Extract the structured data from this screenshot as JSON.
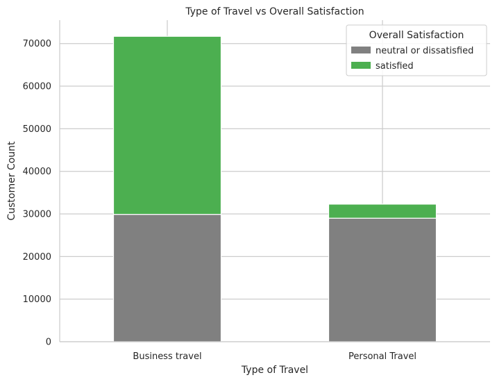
{
  "chart_data": {
    "type": "bar",
    "stacked": true,
    "title": "Type of Travel vs Overall Satisfaction",
    "xlabel": "Type of Travel",
    "ylabel": "Customer Count",
    "categories": [
      "Business travel",
      "Personal Travel"
    ],
    "series": [
      {
        "name": "neutral or dissatisfied",
        "values": [
          29900,
          29000
        ],
        "color": "#808080"
      },
      {
        "name": "satisfied",
        "values": [
          41800,
          3300
        ],
        "color": "#4caf50"
      }
    ],
    "ylim": [
      0,
      75500
    ],
    "yticks": [
      0,
      10000,
      20000,
      30000,
      40000,
      50000,
      60000,
      70000
    ],
    "grid": true,
    "legend": {
      "title": "Overall Satisfaction",
      "placement": "top-right"
    }
  }
}
